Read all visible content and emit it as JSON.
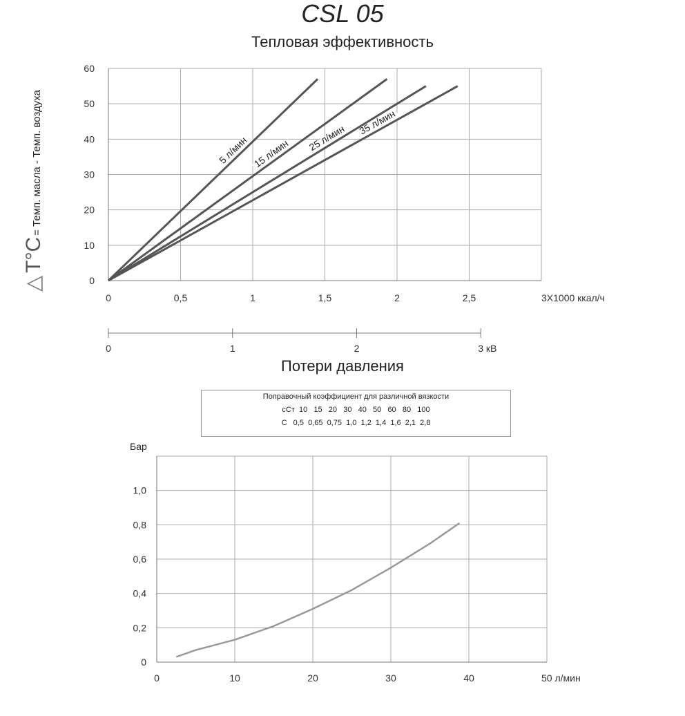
{
  "title": "CSL 05",
  "heat_section": {
    "title": "Тепловая эффективность",
    "ylabel_symbol": "△",
    "ylabel_main": "T°C",
    "ylabel_rest": "= Темп. масла - Темп. воздуха"
  },
  "pressure_section": {
    "title": "Потери давления",
    "viscosity_box": {
      "heading": "Поправочный коэффициент для различной вязкости",
      "row1_label": "сСт",
      "row1_values": [
        "10",
        "15",
        "20",
        "30",
        "40",
        "50",
        "60",
        "80",
        "100"
      ],
      "row2_label": "C",
      "row2_values": [
        "0,5",
        "0,65",
        "0,75",
        "1,0",
        "1,2",
        "1,4",
        "1,6",
        "2,1",
        "2,8"
      ]
    }
  },
  "chart_data": [
    {
      "type": "line",
      "title": "Тепловая эффективность",
      "xlabel": "3X1000 ккал/ч",
      "ylabel": "△ T°C= Темп. масла - Темп. воздуха",
      "xlim": [
        0,
        3
      ],
      "ylim": [
        0,
        60
      ],
      "x_ticks": [
        "0",
        "0,5",
        "1",
        "1,5",
        "2",
        "2,5"
      ],
      "x_tick_values": [
        0,
        0.5,
        1,
        1.5,
        2,
        2.5
      ],
      "y_ticks": [
        "0",
        "10",
        "20",
        "30",
        "40",
        "50",
        "60"
      ],
      "y_tick_values": [
        0,
        10,
        20,
        30,
        40,
        50,
        60
      ],
      "secondary_x_axis": {
        "ticks": [
          "0",
          "1",
          "2",
          "3 кВ"
        ],
        "values": [
          0,
          1,
          2,
          3
        ],
        "kcal_per_unit": 0.86
      },
      "grid": true,
      "color": "#555555",
      "series": [
        {
          "name": "5 л/мин",
          "x": [
            0,
            1.45
          ],
          "y": [
            0,
            57
          ]
        },
        {
          "name": "15 л/мин",
          "x": [
            0,
            1.93
          ],
          "y": [
            0,
            57
          ]
        },
        {
          "name": "25 л/мин",
          "x": [
            0,
            2.2
          ],
          "y": [
            0,
            55
          ]
        },
        {
          "name": "35 л/мин",
          "x": [
            0,
            2.42
          ],
          "y": [
            0,
            55
          ]
        }
      ]
    },
    {
      "type": "line",
      "title": "Потери давления",
      "xlabel": "л/мин",
      "ylabel": "Бар",
      "xlim": [
        0,
        50
      ],
      "ylim": [
        0,
        1.2
      ],
      "x_ticks": [
        "0",
        "10",
        "20",
        "30",
        "40",
        "50 л/мин"
      ],
      "x_tick_values": [
        0,
        10,
        20,
        30,
        40,
        50
      ],
      "y_ticks": [
        "0",
        "0,2",
        "0,4",
        "0,6",
        "0,8",
        "1,0"
      ],
      "y_tick_values": [
        0,
        0.2,
        0.4,
        0.6,
        0.8,
        1.0
      ],
      "grid": true,
      "color": "#999999",
      "series": [
        {
          "x": [
            2.5,
            5,
            10,
            15,
            20,
            25,
            30,
            35,
            38.8
          ],
          "y": [
            0.03,
            0.07,
            0.13,
            0.21,
            0.31,
            0.42,
            0.55,
            0.69,
            0.81
          ]
        }
      ]
    }
  ]
}
